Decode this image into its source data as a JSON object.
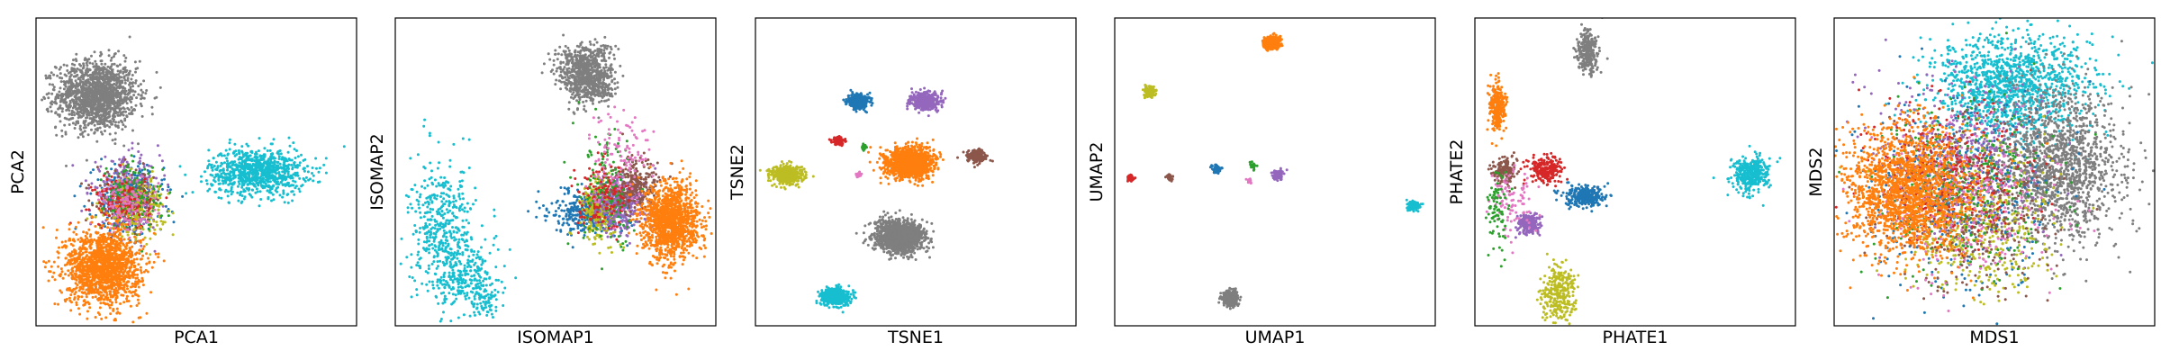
{
  "palette": {
    "blue": "#1f77b4",
    "orange": "#ff7f0e",
    "green": "#2ca02c",
    "red": "#d62728",
    "purple": "#9467bd",
    "brown": "#8c564b",
    "pink": "#e377c2",
    "gray": "#7f7f7f",
    "olive": "#bcbd22",
    "cyan": "#17becf"
  },
  "chart_data": [
    {
      "type": "scatter",
      "xlabel": "PCA1",
      "ylabel": "PCA2",
      "xlim": [
        0,
        10
      ],
      "ylim": [
        0,
        10
      ],
      "grid": false,
      "ticks": false,
      "clusters": [
        {
          "color": "gray",
          "cx": 1.9,
          "cy": 7.5,
          "sx": 0.62,
          "sy": 0.55,
          "n": 1500
        },
        {
          "color": "cyan",
          "cx": 6.9,
          "cy": 5.0,
          "sx": 0.75,
          "sy": 0.38,
          "n": 900
        },
        {
          "color": "blue",
          "cx": 2.9,
          "cy": 4.1,
          "sx": 0.55,
          "sy": 0.55,
          "n": 300
        },
        {
          "color": "purple",
          "cx": 2.8,
          "cy": 4.3,
          "sx": 0.55,
          "sy": 0.55,
          "n": 300
        },
        {
          "color": "brown",
          "cx": 2.9,
          "cy": 4.0,
          "sx": 0.5,
          "sy": 0.5,
          "n": 200
        },
        {
          "color": "olive",
          "cx": 3.1,
          "cy": 3.9,
          "sx": 0.45,
          "sy": 0.45,
          "n": 250
        },
        {
          "color": "green",
          "cx": 3.0,
          "cy": 4.2,
          "sx": 0.45,
          "sy": 0.55,
          "n": 150
        },
        {
          "color": "red",
          "cx": 2.7,
          "cy": 4.0,
          "sx": 0.45,
          "sy": 0.45,
          "n": 120
        },
        {
          "color": "pink",
          "cx": 2.9,
          "cy": 3.9,
          "sx": 0.45,
          "sy": 0.45,
          "n": 120
        },
        {
          "color": "orange",
          "cx": 2.1,
          "cy": 1.9,
          "sx": 0.58,
          "sy": 0.6,
          "n": 1500
        }
      ]
    },
    {
      "type": "scatter",
      "xlabel": "ISOMAP1",
      "ylabel": "ISOMAP2",
      "xlim": [
        0,
        10
      ],
      "ylim": [
        0,
        10
      ],
      "grid": false,
      "ticks": false,
      "clusters": [
        {
          "color": "gray",
          "cx": 5.9,
          "cy": 8.3,
          "sx": 0.45,
          "sy": 0.45,
          "n": 600
        },
        {
          "color": "gray",
          "cx": 6.2,
          "cy": 7.8,
          "sx": 0.35,
          "sy": 0.3,
          "n": 250
        },
        {
          "color": "cyan",
          "cx": 1.5,
          "cy": 3.0,
          "sx": 0.5,
          "sy": 1.1,
          "n": 500
        },
        {
          "color": "cyan",
          "cx": 2.3,
          "cy": 1.5,
          "sx": 0.45,
          "sy": 0.5,
          "n": 200
        },
        {
          "color": "cyan",
          "cx": 2.8,
          "cy": 0.9,
          "sx": 0.2,
          "sy": 0.3,
          "n": 60
        },
        {
          "color": "blue",
          "cx": 6.1,
          "cy": 3.7,
          "sx": 0.6,
          "sy": 0.35,
          "n": 400
        },
        {
          "color": "olive",
          "cx": 6.4,
          "cy": 3.8,
          "sx": 0.3,
          "sy": 0.5,
          "n": 300
        },
        {
          "color": "purple",
          "cx": 7.0,
          "cy": 4.0,
          "sx": 0.4,
          "sy": 0.45,
          "n": 400
        },
        {
          "color": "brown",
          "cx": 7.5,
          "cy": 4.5,
          "sx": 0.35,
          "sy": 0.45,
          "n": 250
        },
        {
          "color": "green",
          "cx": 6.7,
          "cy": 4.4,
          "sx": 0.45,
          "sy": 0.9,
          "n": 150
        },
        {
          "color": "red",
          "cx": 6.5,
          "cy": 4.1,
          "sx": 0.4,
          "sy": 0.55,
          "n": 130
        },
        {
          "color": "pink",
          "cx": 7.0,
          "cy": 5.6,
          "sx": 0.55,
          "sy": 0.8,
          "n": 120
        },
        {
          "color": "orange",
          "cx": 8.6,
          "cy": 3.4,
          "sx": 0.42,
          "sy": 0.6,
          "n": 1300
        }
      ]
    },
    {
      "type": "scatter",
      "xlabel": "TSNE1",
      "ylabel": "TSNE2",
      "xlim": [
        0,
        10
      ],
      "ylim": [
        0,
        10
      ],
      "grid": false,
      "ticks": false,
      "clusters": [
        {
          "color": "blue",
          "cx": 3.2,
          "cy": 7.3,
          "sx": 0.17,
          "sy": 0.12,
          "n": 300
        },
        {
          "color": "purple",
          "cx": 5.3,
          "cy": 7.3,
          "sx": 0.22,
          "sy": 0.14,
          "n": 400
        },
        {
          "color": "red",
          "cx": 2.6,
          "cy": 6.0,
          "sx": 0.1,
          "sy": 0.07,
          "n": 100
        },
        {
          "color": "green",
          "cx": 3.4,
          "cy": 5.8,
          "sx": 0.05,
          "sy": 0.04,
          "n": 30
        },
        {
          "color": "orange",
          "cx": 4.8,
          "cy": 5.3,
          "sx": 0.35,
          "sy": 0.24,
          "n": 1400
        },
        {
          "color": "brown",
          "cx": 6.9,
          "cy": 5.5,
          "sx": 0.16,
          "sy": 0.1,
          "n": 200
        },
        {
          "color": "olive",
          "cx": 1.0,
          "cy": 4.9,
          "sx": 0.24,
          "sy": 0.15,
          "n": 500
        },
        {
          "color": "pink",
          "cx": 3.2,
          "cy": 4.9,
          "sx": 0.05,
          "sy": 0.04,
          "n": 25
        },
        {
          "color": "gray",
          "cx": 4.5,
          "cy": 2.9,
          "sx": 0.38,
          "sy": 0.25,
          "n": 1400
        },
        {
          "color": "cyan",
          "cx": 2.5,
          "cy": 0.95,
          "sx": 0.22,
          "sy": 0.14,
          "n": 500
        }
      ]
    },
    {
      "type": "scatter",
      "xlabel": "UMAP1",
      "ylabel": "UMAP2",
      "xlim": [
        0,
        10
      ],
      "ylim": [
        0,
        10
      ],
      "grid": false,
      "ticks": false,
      "clusters": [
        {
          "color": "orange",
          "cx": 4.9,
          "cy": 9.2,
          "sx": 0.13,
          "sy": 0.1,
          "n": 400
        },
        {
          "color": "olive",
          "cx": 1.1,
          "cy": 7.6,
          "sx": 0.09,
          "sy": 0.08,
          "n": 150
        },
        {
          "color": "blue",
          "cx": 3.2,
          "cy": 5.1,
          "sx": 0.07,
          "sy": 0.06,
          "n": 80
        },
        {
          "color": "green",
          "cx": 4.3,
          "cy": 5.2,
          "sx": 0.05,
          "sy": 0.05,
          "n": 30
        },
        {
          "color": "purple",
          "cx": 5.1,
          "cy": 4.9,
          "sx": 0.08,
          "sy": 0.07,
          "n": 100
        },
        {
          "color": "red",
          "cx": 0.5,
          "cy": 4.8,
          "sx": 0.05,
          "sy": 0.05,
          "n": 40
        },
        {
          "color": "brown",
          "cx": 1.7,
          "cy": 4.8,
          "sx": 0.05,
          "sy": 0.05,
          "n": 40
        },
        {
          "color": "pink",
          "cx": 4.2,
          "cy": 4.7,
          "sx": 0.04,
          "sy": 0.04,
          "n": 15
        },
        {
          "color": "cyan",
          "cx": 9.3,
          "cy": 3.9,
          "sx": 0.09,
          "sy": 0.07,
          "n": 150
        },
        {
          "color": "gray",
          "cx": 3.6,
          "cy": 0.9,
          "sx": 0.13,
          "sy": 0.12,
          "n": 350
        }
      ]
    },
    {
      "type": "scatter",
      "xlabel": "PHATE1",
      "ylabel": "PHATE2",
      "xlim": [
        0,
        10
      ],
      "ylim": [
        0,
        10
      ],
      "grid": false,
      "ticks": false,
      "clusters": [
        {
          "color": "gray",
          "cx": 3.5,
          "cy": 8.9,
          "sx": 0.15,
          "sy": 0.35,
          "n": 300
        },
        {
          "color": "orange",
          "cx": 0.7,
          "cy": 7.1,
          "sx": 0.13,
          "sy": 0.4,
          "n": 250
        },
        {
          "color": "red",
          "cx": 2.2,
          "cy": 5.1,
          "sx": 0.25,
          "sy": 0.22,
          "n": 250
        },
        {
          "color": "brown",
          "cx": 0.9,
          "cy": 5.0,
          "sx": 0.18,
          "sy": 0.22,
          "n": 150
        },
        {
          "color": "blue",
          "cx": 3.4,
          "cy": 4.2,
          "sx": 0.3,
          "sy": 0.17,
          "n": 300
        },
        {
          "color": "purple",
          "cx": 1.7,
          "cy": 3.3,
          "sx": 0.2,
          "sy": 0.17,
          "n": 200
        },
        {
          "color": "pink",
          "cx": 1.2,
          "cy": 4.0,
          "sx": 0.35,
          "sy": 0.6,
          "n": 100
        },
        {
          "color": "green",
          "cx": 0.7,
          "cy": 3.6,
          "sx": 0.17,
          "sy": 0.7,
          "n": 80
        },
        {
          "color": "olive",
          "cx": 2.6,
          "cy": 1.0,
          "sx": 0.25,
          "sy": 0.45,
          "n": 300
        },
        {
          "color": "cyan",
          "cx": 8.6,
          "cy": 4.9,
          "sx": 0.28,
          "sy": 0.3,
          "n": 350
        }
      ]
    },
    {
      "type": "scatter",
      "xlabel": "MDS1",
      "ylabel": "MDS2",
      "xlim": [
        0,
        10
      ],
      "ylim": [
        0,
        10
      ],
      "grid": false,
      "ticks": false,
      "clusters": [
        {
          "color": "cyan",
          "cx": 5.5,
          "cy": 7.8,
          "sx": 1.2,
          "sy": 0.85,
          "n": 1300
        },
        {
          "color": "gray",
          "cx": 7.0,
          "cy": 5.2,
          "sx": 1.0,
          "sy": 1.2,
          "n": 1500
        },
        {
          "color": "blue",
          "cx": 4.0,
          "cy": 4.2,
          "sx": 1.4,
          "sy": 1.5,
          "n": 450
        },
        {
          "color": "purple",
          "cx": 3.8,
          "cy": 5.5,
          "sx": 1.2,
          "sy": 1.3,
          "n": 450
        },
        {
          "color": "olive",
          "cx": 4.6,
          "cy": 3.2,
          "sx": 1.2,
          "sy": 1.2,
          "n": 450
        },
        {
          "color": "green",
          "cx": 3.9,
          "cy": 4.6,
          "sx": 1.3,
          "sy": 1.4,
          "n": 350
        },
        {
          "color": "brown",
          "cx": 4.3,
          "cy": 3.8,
          "sx": 1.3,
          "sy": 1.4,
          "n": 350
        },
        {
          "color": "red",
          "cx": 3.5,
          "cy": 5.0,
          "sx": 1.2,
          "sy": 1.3,
          "n": 300
        },
        {
          "color": "pink",
          "cx": 4.1,
          "cy": 4.1,
          "sx": 1.3,
          "sy": 1.3,
          "n": 300
        },
        {
          "color": "orange",
          "cx": 2.3,
          "cy": 4.3,
          "sx": 1.0,
          "sy": 1.05,
          "n": 1700
        }
      ]
    }
  ]
}
